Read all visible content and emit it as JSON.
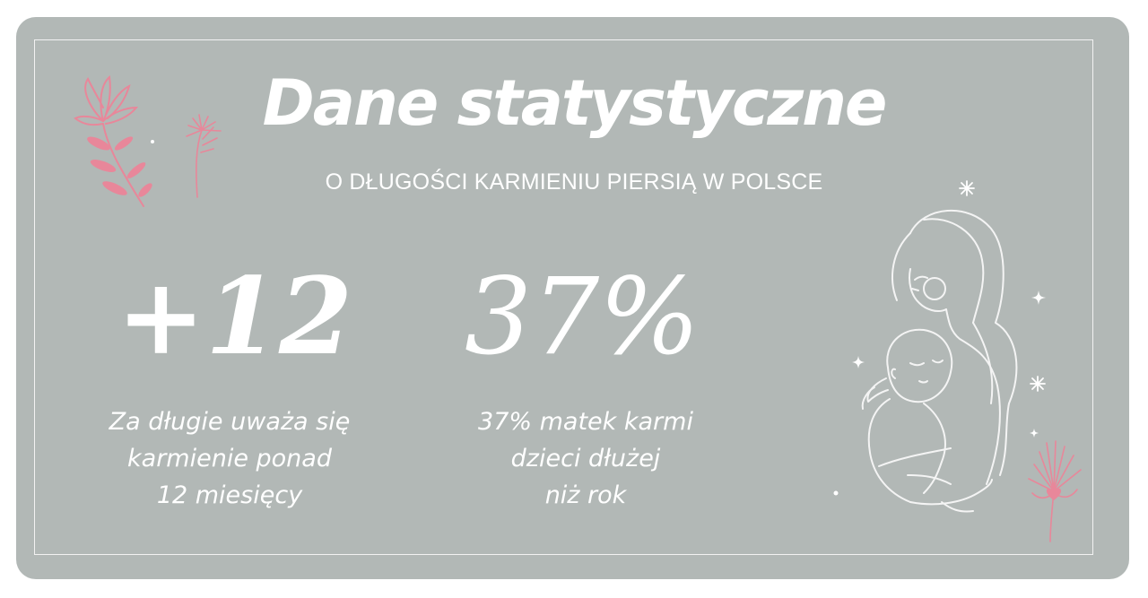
{
  "heading": {
    "title": "Dane statystyczne",
    "subtitle": "O DŁUGOŚCI KARMIENIU PIERSIĄ W POLSCE"
  },
  "stats": [
    {
      "value": "+12",
      "description_lines": [
        "Za długie uważa się",
        "karmienie ponad",
        "12 miesięcy"
      ]
    },
    {
      "value": "37%",
      "description_lines": [
        "37% matek karmi",
        "dzieci dłużej",
        "niż rok"
      ]
    }
  ],
  "colors": {
    "card_background": "#b2b8b6",
    "text": "#ffffff",
    "flower_pink": "#e8879a",
    "line_art": "#f4f4f4"
  },
  "decorations": {
    "top_left": "pink-flower-icon",
    "illustration": "mother-and-baby-line-art",
    "bottom_right": "pink-flower-icon",
    "sparkles": "sparkle-icon"
  }
}
